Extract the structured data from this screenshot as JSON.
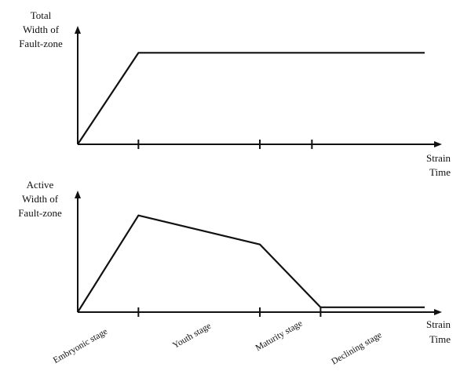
{
  "chart_data": [
    {
      "type": "line",
      "ylabel": [
        "Total",
        "Width of",
        "Fault-zone"
      ],
      "xlabel": [
        "Strain",
        "Time"
      ],
      "tick_positions": [
        0.35,
        1.05,
        1.35
      ],
      "series": [
        {
          "x": [
            0,
            0.35,
            2.0
          ],
          "y": [
            0,
            1,
            1
          ]
        }
      ],
      "xlim": [
        0,
        2.0
      ],
      "ylim": [
        0,
        1.2
      ],
      "grid": false
    },
    {
      "type": "line",
      "ylabel": [
        "Active",
        "Width of",
        "Fault-zone"
      ],
      "xlabel": [
        "Strain",
        "Time"
      ],
      "categories": [
        "Embryonic stage",
        "Youth stage",
        "Maturity stage",
        "Declining stage"
      ],
      "tick_positions": [
        0.35,
        1.05,
        1.4
      ],
      "series": [
        {
          "x": [
            0,
            0.35,
            1.05,
            1.4,
            2.0
          ],
          "y": [
            0,
            1,
            0.7,
            0.05,
            0.05
          ]
        }
      ],
      "xlim": [
        0,
        2.0
      ],
      "ylim": [
        0,
        1.2
      ],
      "grid": false
    }
  ]
}
